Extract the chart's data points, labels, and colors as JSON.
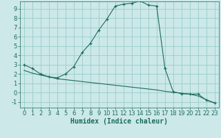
{
  "xlabel": "Humidex (Indice chaleur)",
  "bg_color": "#cce8e8",
  "grid_color": "#99cccc",
  "line_color": "#1a6b5a",
  "xlim": [
    -0.5,
    23.5
  ],
  "ylim": [
    -1.6,
    9.8
  ],
  "xticks": [
    0,
    1,
    2,
    3,
    4,
    5,
    6,
    7,
    8,
    9,
    10,
    11,
    12,
    13,
    14,
    15,
    16,
    17,
    18,
    19,
    20,
    21,
    22,
    23
  ],
  "yticks": [
    -1,
    0,
    1,
    2,
    3,
    4,
    5,
    6,
    7,
    8,
    9
  ],
  "curve1_x": [
    0,
    1,
    2,
    3,
    4,
    5,
    6,
    7,
    8,
    9,
    10,
    11,
    12,
    13,
    14,
    15,
    16,
    17,
    18,
    19,
    20,
    21,
    22,
    23
  ],
  "curve1_y": [
    3.0,
    2.6,
    2.0,
    1.7,
    1.6,
    2.0,
    2.8,
    4.3,
    5.3,
    6.7,
    7.9,
    9.3,
    9.5,
    9.6,
    9.85,
    9.4,
    9.3,
    2.6,
    0.1,
    -0.1,
    -0.15,
    -0.15,
    -0.8,
    -1.1
  ],
  "curve2_x": [
    0,
    1,
    2,
    3,
    4,
    5,
    6,
    7,
    8,
    9,
    10,
    11,
    12,
    13,
    14,
    15,
    16,
    17,
    18,
    19,
    20,
    21,
    22,
    23
  ],
  "curve2_y": [
    2.4,
    2.1,
    1.9,
    1.7,
    1.5,
    1.4,
    1.3,
    1.2,
    1.1,
    1.0,
    0.9,
    0.8,
    0.7,
    0.6,
    0.5,
    0.4,
    0.3,
    0.15,
    0.05,
    -0.05,
    -0.15,
    -0.35,
    -0.75,
    -1.1
  ],
  "xlabel_fontsize": 7,
  "tick_fontsize": 6
}
